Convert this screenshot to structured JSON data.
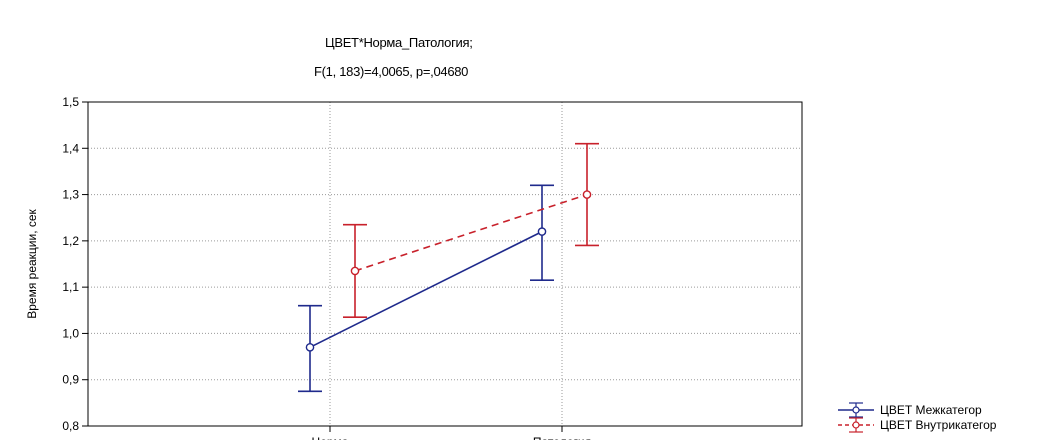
{
  "chart_data": {
    "type": "line",
    "title": "ЦВЕТ*Норма_Патология;",
    "subtitle": "F(1, 183)=4,0065, p=,04680",
    "xlabel": "",
    "ylabel": "Время реакции, сек",
    "ylim": [
      0.8,
      1.5
    ],
    "yticks": [
      "1,5",
      "1,4",
      "1,3",
      "1,2",
      "1,1",
      "1,0",
      "0,9",
      "0,8"
    ],
    "categories": [
      "Норма",
      "Патология"
    ],
    "grid": true,
    "legend_position": "bottom-right",
    "series": [
      {
        "name": "ЦВЕТ Межкатегор",
        "color": "#1f2a8c",
        "line_style": "solid",
        "values": [
          0.97,
          1.22
        ],
        "ci_low": [
          0.875,
          1.115
        ],
        "ci_high": [
          1.06,
          1.32
        ]
      },
      {
        "name": "ЦВЕТ Внутрикатегор",
        "color": "#c8212b",
        "line_style": "dashed",
        "values": [
          1.135,
          1.3
        ],
        "ci_low": [
          1.035,
          1.19
        ],
        "ci_high": [
          1.235,
          1.41
        ]
      }
    ]
  }
}
